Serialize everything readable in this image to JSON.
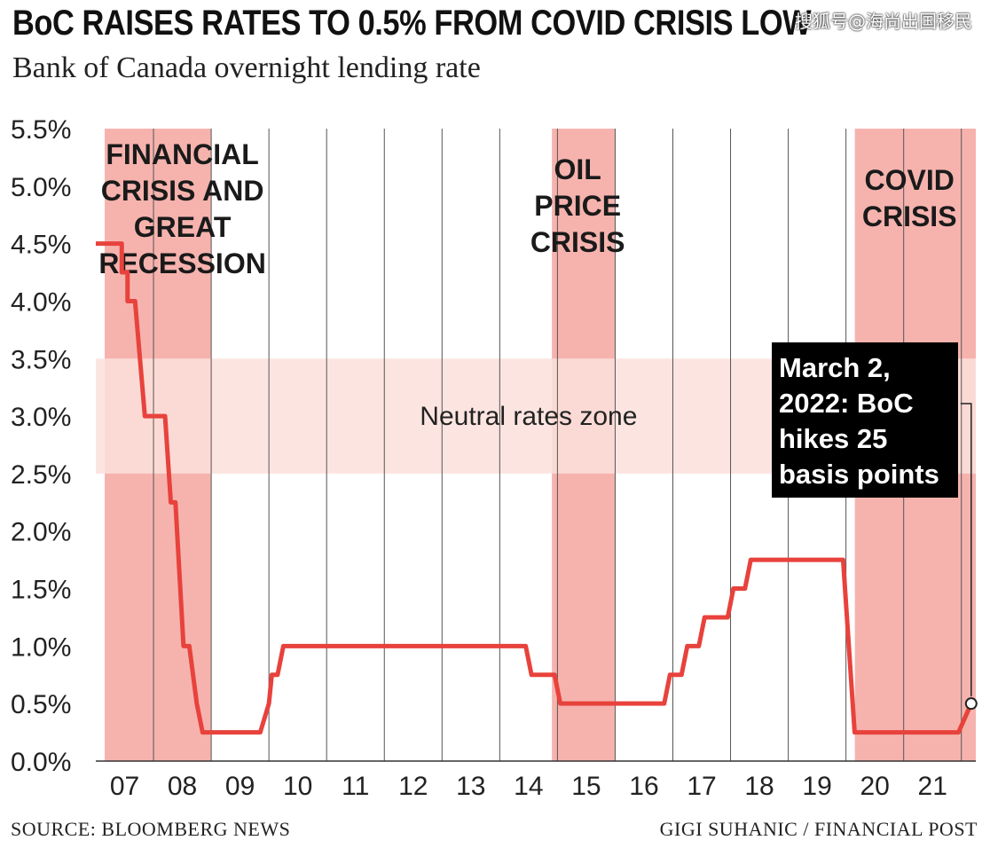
{
  "header": {
    "title": "BoC RAISES RATES TO 0.5% FROM COVID CRISIS LOW",
    "subtitle": "Bank of Canada overnight lending rate",
    "watermark": "搜狐号@海尚出国移民"
  },
  "footer": {
    "source": "SOURCE: BLOOMBERG NEWS",
    "credit": "GIGI SUHANIC / FINANCIAL POST"
  },
  "colors": {
    "line": "#e8423c",
    "crisis_band": "#f6b3ae",
    "neutral_band": "#fbe0dc",
    "annotation_bg": "#000000"
  },
  "chart_data": {
    "type": "line",
    "title": "BoC RAISES RATES TO 0.5% FROM COVID CRISIS LOW",
    "subtitle": "Bank of Canada overnight lending rate",
    "xlabel": "",
    "ylabel": "",
    "x_range": [
      2007,
      2022.25
    ],
    "ylim": [
      0,
      5.5
    ],
    "y_ticks": [
      0,
      0.5,
      1,
      1.5,
      2,
      2.5,
      3,
      3.5,
      4,
      4.5,
      5,
      5.5
    ],
    "y_tick_labels": [
      "0.0%",
      "0.5%",
      "1.0%",
      "1.5%",
      "2.0%",
      "2.5%",
      "3.0%",
      "3.5%",
      "4.0%",
      "4.5%",
      "5.0%",
      "5.5%"
    ],
    "x_tick_labels": [
      "07",
      "08",
      "09",
      "10",
      "11",
      "12",
      "13",
      "14",
      "15",
      "16",
      "17",
      "18",
      "19",
      "20",
      "21"
    ],
    "grid": "vertical",
    "series": [
      {
        "name": "Overnight rate",
        "points": [
          [
            2007.0,
            4.5
          ],
          [
            2007.45,
            4.5
          ],
          [
            2007.45,
            4.25
          ],
          [
            2007.55,
            4.25
          ],
          [
            2007.55,
            4.0
          ],
          [
            2007.68,
            4.0
          ],
          [
            2007.85,
            3.0
          ],
          [
            2008.2,
            3.0
          ],
          [
            2008.3,
            2.25
          ],
          [
            2008.38,
            2.25
          ],
          [
            2008.52,
            1.0
          ],
          [
            2008.62,
            1.0
          ],
          [
            2008.75,
            0.5
          ],
          [
            2008.85,
            0.25
          ],
          [
            2009.85,
            0.25
          ],
          [
            2010.0,
            0.5
          ],
          [
            2010.05,
            0.75
          ],
          [
            2010.15,
            0.75
          ],
          [
            2010.25,
            1.0
          ],
          [
            2014.45,
            1.0
          ],
          [
            2014.55,
            0.75
          ],
          [
            2014.95,
            0.75
          ],
          [
            2015.05,
            0.5
          ],
          [
            2016.85,
            0.5
          ],
          [
            2016.95,
            0.75
          ],
          [
            2017.15,
            0.75
          ],
          [
            2017.25,
            1.0
          ],
          [
            2017.45,
            1.0
          ],
          [
            2017.55,
            1.25
          ],
          [
            2017.95,
            1.25
          ],
          [
            2018.05,
            1.5
          ],
          [
            2018.25,
            1.5
          ],
          [
            2018.35,
            1.75
          ],
          [
            2019.95,
            1.75
          ],
          [
            2020.15,
            0.25
          ],
          [
            2021.95,
            0.25
          ],
          [
            2022.17,
            0.5
          ]
        ]
      }
    ],
    "shaded_regions": [
      {
        "name": "crisis-financial",
        "x_start": 2007.0,
        "x_end": 2009.0,
        "label_lines": [
          "FINANCIAL",
          "CRISIS AND",
          "GREAT",
          "RECESSION"
        ]
      },
      {
        "name": "crisis-oil",
        "x_start": 2014.75,
        "x_end": 2016.0,
        "label_lines": [
          "OIL",
          "PRICE",
          "CRISIS"
        ]
      },
      {
        "name": "crisis-covid",
        "x_start": 2020.0,
        "x_end": 2022.25,
        "label_lines": [
          "COVID",
          "CRISIS"
        ]
      }
    ],
    "neutral_zone": {
      "y_start": 2.5,
      "y_end": 3.5,
      "label": "Neutral rates zone"
    },
    "annotation": {
      "lines": [
        "March 2,",
        "2022: BoC",
        "hikes 25",
        "basis points"
      ],
      "point": [
        2022.17,
        0.5
      ]
    }
  }
}
